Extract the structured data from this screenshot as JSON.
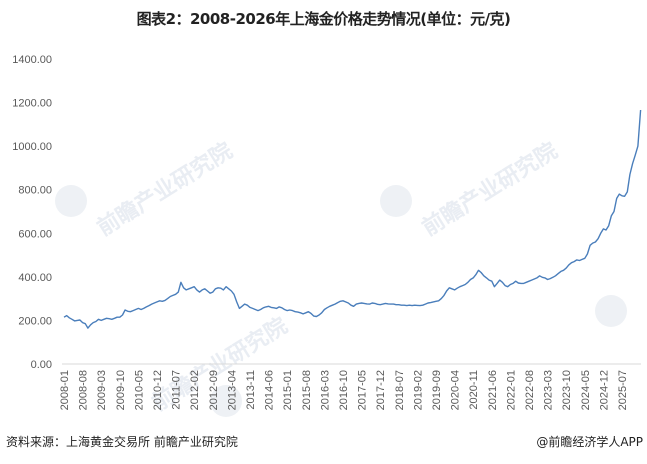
{
  "title": "图表2：2008-2026年上海金价格走势情况(单位：元/克)",
  "footer": {
    "source": "资料来源：上海黄金交易所 前瞻产业研究院",
    "credit": "@前瞻经济学人APP"
  },
  "watermark": "前瞻产业研究院",
  "colors": {
    "line": "#4a7ebb",
    "axis": "#d9d9d9",
    "text": "#595959"
  },
  "chart_data": {
    "type": "line",
    "title": "图表2：2008-2026年上海金价格走势情况(单位：元/克)",
    "xlabel": "",
    "ylabel": "元/克",
    "ylim": [
      0,
      1400
    ],
    "yticks": [
      "0.00",
      "200.00",
      "400.00",
      "600.00",
      "800.00",
      "1000.00",
      "1200.00",
      "1400.00"
    ],
    "grid": false,
    "legend": "none",
    "x_tick_labels": [
      "2008-01",
      "2008-08",
      "2009-03",
      "2009-10",
      "2010-05",
      "2010-12",
      "2011-07",
      "2012-02",
      "2012-09",
      "2013-04",
      "2013-11",
      "2014-06",
      "2015-01",
      "2015-08",
      "2016-03",
      "2016-10",
      "2017-05",
      "2017-12",
      "2018-07",
      "2019-02",
      "2019-09",
      "2020-04",
      "2020-11",
      "2021-06",
      "2022-01",
      "2022-08",
      "2023-03",
      "2023-10",
      "2024-05",
      "2024-12",
      "2025-07"
    ],
    "series": [
      {
        "name": "上海金价格",
        "start": "2008-01",
        "frequency": "monthly",
        "values": [
          215,
          222,
          212,
          205,
          198,
          200,
          202,
          190,
          185,
          165,
          180,
          190,
          195,
          205,
          200,
          205,
          210,
          208,
          205,
          210,
          215,
          215,
          225,
          248,
          242,
          240,
          245,
          250,
          255,
          250,
          255,
          262,
          268,
          275,
          280,
          285,
          290,
          288,
          292,
          300,
          310,
          315,
          320,
          330,
          375,
          350,
          340,
          345,
          350,
          355,
          340,
          330,
          340,
          345,
          335,
          325,
          330,
          345,
          350,
          348,
          340,
          355,
          345,
          335,
          320,
          285,
          255,
          265,
          275,
          270,
          260,
          255,
          250,
          245,
          250,
          258,
          262,
          265,
          260,
          258,
          255,
          262,
          258,
          250,
          245,
          248,
          245,
          240,
          238,
          235,
          230,
          235,
          240,
          232,
          220,
          218,
          225,
          235,
          250,
          258,
          265,
          270,
          275,
          282,
          288,
          290,
          285,
          280,
          270,
          265,
          275,
          278,
          280,
          278,
          276,
          275,
          280,
          278,
          274,
          272,
          275,
          278,
          276,
          275,
          275,
          272,
          272,
          270,
          270,
          268,
          270,
          268,
          270,
          269,
          268,
          270,
          275,
          280,
          282,
          285,
          288,
          290,
          300,
          315,
          335,
          350,
          345,
          340,
          348,
          355,
          360,
          365,
          375,
          388,
          395,
          410,
          430,
          420,
          405,
          395,
          385,
          380,
          355,
          370,
          385,
          375,
          360,
          355,
          365,
          370,
          380,
          372,
          370,
          370,
          375,
          380,
          385,
          390,
          395,
          405,
          398,
          395,
          388,
          392,
          398,
          405,
          415,
          425,
          430,
          440,
          455,
          465,
          470,
          478,
          475,
          480,
          485,
          505,
          545,
          555,
          560,
          575,
          600,
          620,
          615,
          635,
          680,
          700,
          760,
          780,
          772,
          770,
          790,
          870,
          920,
          960,
          1000,
          1166
        ]
      }
    ]
  }
}
